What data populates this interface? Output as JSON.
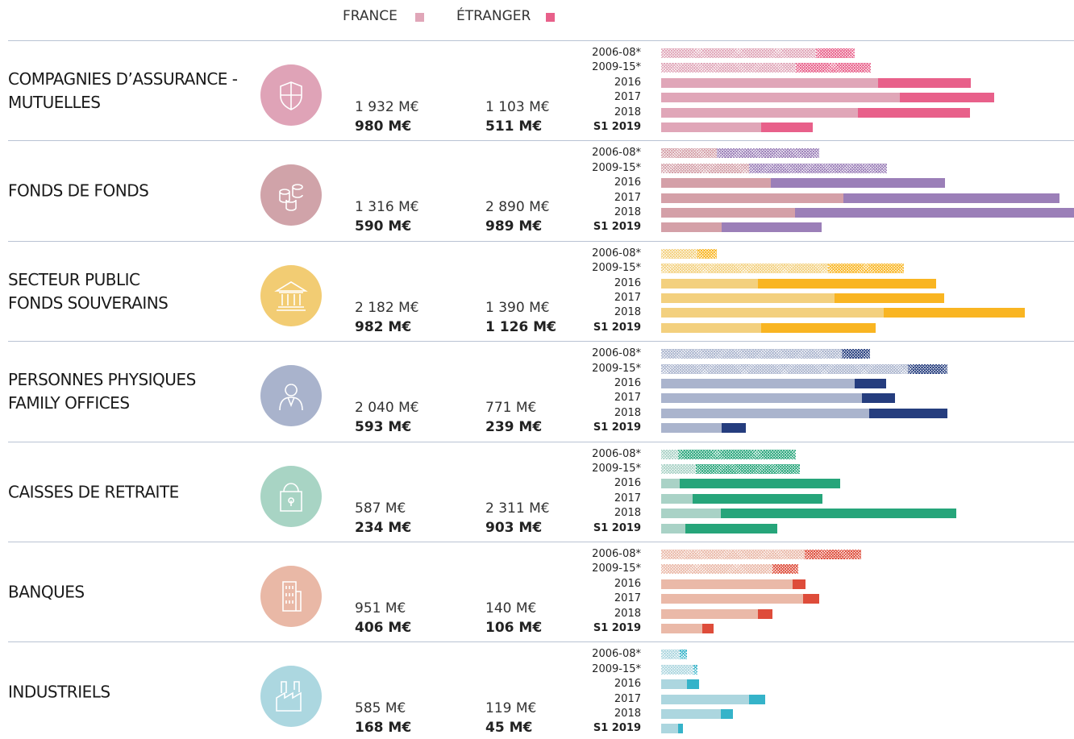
{
  "chart_data": [
    {
      "type": "bar",
      "title": "COMPAGNIES D’ASSURANCE -\nMUTUELLES",
      "icon_color": "#dfa3b7",
      "categories": [
        "2006-08*",
        "2009-15*",
        "2016",
        "2017",
        "2018",
        "S1 2019"
      ],
      "hatched": [
        true,
        true,
        false,
        false,
        false,
        false
      ],
      "series": [
        {
          "name": "FRANCE",
          "color": "#e0a6b8",
          "values": [
            1520,
            1320,
            2130,
            2340,
            1932,
            980
          ],
          "value_labels": [
            null,
            null,
            null,
            null,
            "1 932 M€",
            "980 M€"
          ]
        },
        {
          "name": "ÉTRANGER",
          "color": "#e8608a",
          "values": [
            380,
            740,
            910,
            930,
            1103,
            511
          ],
          "value_labels": [
            null,
            null,
            null,
            null,
            "1 103 M€",
            "511 M€"
          ]
        }
      ]
    },
    {
      "type": "bar",
      "title": "FONDS DE FONDS",
      "icon_color": "#d0a3a9",
      "categories": [
        "2006-08*",
        "2009-15*",
        "2016",
        "2017",
        "2018",
        "S1 2019"
      ],
      "hatched": [
        true,
        true,
        false,
        false,
        false,
        false
      ],
      "series": [
        {
          "name": "FRANCE",
          "color": "#d4a0a8",
          "values": [
            550,
            860,
            1080,
            1790,
            1316,
            590
          ],
          "value_labels": [
            null,
            null,
            null,
            null,
            "1 316 M€",
            "590 M€"
          ]
        },
        {
          "name": "ÉTRANGER",
          "color": "#9b7fb8",
          "values": [
            1000,
            1360,
            1710,
            2120,
            2890,
            989
          ],
          "value_labels": [
            null,
            null,
            null,
            null,
            "2 890 M€",
            "989 M€"
          ]
        }
      ]
    },
    {
      "type": "bar",
      "title": "SECTEUR PUBLIC\nFONDS SOUVERAINS",
      "icon_color": "#f2cc73",
      "categories": [
        "2006-08*",
        "2009-15*",
        "2016",
        "2017",
        "2018",
        "S1 2019"
      ],
      "hatched": [
        true,
        true,
        false,
        false,
        false,
        false
      ],
      "series": [
        {
          "name": "FRANCE",
          "color": "#f3d07e",
          "values": [
            360,
            1640,
            950,
            1700,
            2182,
            982
          ],
          "value_labels": [
            null,
            null,
            null,
            null,
            "2 182 M€",
            "982 M€"
          ]
        },
        {
          "name": "ÉTRANGER",
          "color": "#f9b522",
          "values": [
            190,
            740,
            1750,
            1080,
            1390,
            1126
          ],
          "value_labels": [
            null,
            null,
            null,
            null,
            "1 390 M€",
            "1 126 M€"
          ]
        }
      ]
    },
    {
      "type": "bar",
      "title": "PERSONNES PHYSIQUES\nFAMILY OFFICES",
      "icon_color": "#a9b3cc",
      "categories": [
        "2006-08*",
        "2009-15*",
        "2016",
        "2017",
        "2018",
        "S1 2019"
      ],
      "hatched": [
        true,
        true,
        false,
        false,
        false,
        false
      ],
      "series": [
        {
          "name": "FRANCE",
          "color": "#aab4cd",
          "values": [
            1770,
            2420,
            1900,
            1970,
            2040,
            593
          ],
          "value_labels": [
            null,
            null,
            null,
            null,
            "2 040 M€",
            "593 M€"
          ]
        },
        {
          "name": "ÉTRANGER",
          "color": "#253d7e",
          "values": [
            280,
            390,
            310,
            330,
            771,
            239
          ],
          "value_labels": [
            null,
            null,
            null,
            null,
            "771 M€",
            "239 M€"
          ]
        }
      ]
    },
    {
      "type": "bar",
      "title": "CAISSES DE RETRAITE",
      "icon_color": "#a8d4c4",
      "categories": [
        "2006-08*",
        "2009-15*",
        "2016",
        "2017",
        "2018",
        "S1 2019"
      ],
      "hatched": [
        true,
        true,
        false,
        false,
        false,
        false
      ],
      "series": [
        {
          "name": "FRANCE",
          "color": "#a9d2c6",
          "values": [
            170,
            340,
            180,
            310,
            587,
            234
          ],
          "value_labels": [
            null,
            null,
            null,
            null,
            "587 M€",
            "234 M€"
          ]
        },
        {
          "name": "ÉTRANGER",
          "color": "#26a57a",
          "values": [
            1150,
            1020,
            1580,
            1270,
            2311,
            903
          ],
          "value_labels": [
            null,
            null,
            null,
            null,
            "2 311 M€",
            "903 M€"
          ]
        }
      ]
    },
    {
      "type": "bar",
      "title": "BANQUES",
      "icon_color": "#e9b8a6",
      "categories": [
        "2006-08*",
        "2009-15*",
        "2016",
        "2017",
        "2018",
        "S1 2019"
      ],
      "hatched": [
        true,
        true,
        false,
        false,
        false,
        false
      ],
      "series": [
        {
          "name": "FRANCE",
          "color": "#eab9a8",
          "values": [
            1410,
            1090,
            1290,
            1390,
            951,
            406
          ],
          "value_labels": [
            null,
            null,
            null,
            null,
            "951 M€",
            "406 M€"
          ]
        },
        {
          "name": "ÉTRANGER",
          "color": "#de4c3a",
          "values": [
            550,
            260,
            130,
            160,
            140,
            106
          ],
          "value_labels": [
            null,
            null,
            null,
            null,
            "140 M€",
            "106 M€"
          ]
        }
      ]
    },
    {
      "type": "bar",
      "title": "INDUSTRIELS",
      "icon_color": "#acd7e0",
      "categories": [
        "2006-08*",
        "2009-15*",
        "2016",
        "2017",
        "2018",
        "S1 2019"
      ],
      "hatched": [
        true,
        true,
        false,
        false,
        false,
        false
      ],
      "series": [
        {
          "name": "FRANCE",
          "color": "#acd6df",
          "values": [
            180,
            320,
            250,
            860,
            585,
            168
          ],
          "value_labels": [
            null,
            null,
            null,
            null,
            "585 M€",
            "168 M€"
          ]
        },
        {
          "name": "ÉTRANGER",
          "color": "#35b3c9",
          "values": [
            70,
            40,
            120,
            160,
            119,
            45
          ],
          "value_labels": [
            null,
            null,
            null,
            null,
            "119 M€",
            "45 M€"
          ]
        }
      ]
    }
  ]
}
